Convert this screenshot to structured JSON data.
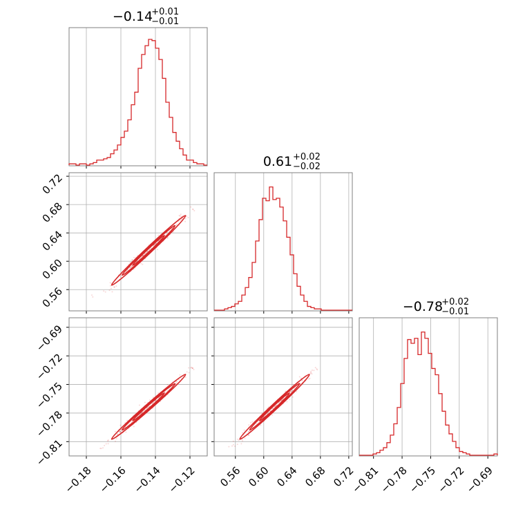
{
  "chart_data": {
    "type": "corner",
    "color": "#d62728",
    "parameters": [
      {
        "name": "",
        "median": -0.14,
        "err_plus": 0.01,
        "err_minus": 0.01,
        "title_main": "−0.14",
        "title_plus": "+0.01",
        "title_minus": "−0.01",
        "range": [
          -0.19,
          -0.11
        ],
        "ticks": [
          -0.18,
          -0.16,
          -0.14,
          -0.12
        ],
        "tick_labels": [
          "−0.18",
          "−0.16",
          "−0.14",
          "−0.12"
        ],
        "hist": [
          0.01,
          0.01,
          0.0,
          0.01,
          0.01,
          0.0,
          0.01,
          0.02,
          0.04,
          0.04,
          0.05,
          0.06,
          0.09,
          0.12,
          0.16,
          0.22,
          0.27,
          0.36,
          0.48,
          0.58,
          0.77,
          0.88,
          0.95,
          1.0,
          0.99,
          0.93,
          0.84,
          0.69,
          0.5,
          0.38,
          0.26,
          0.19,
          0.13,
          0.08,
          0.04,
          0.04,
          0.02,
          0.01,
          0.01,
          0.0
        ]
      },
      {
        "name": "",
        "median": 0.61,
        "err_plus": 0.02,
        "err_minus": 0.02,
        "title_main": "0.61",
        "title_plus": "+0.02",
        "title_minus": "−0.02",
        "range": [
          0.53,
          0.725
        ],
        "ticks": [
          0.56,
          0.6,
          0.64,
          0.68,
          0.72
        ],
        "tick_labels": [
          "0.56",
          "0.60",
          "0.64",
          "0.68",
          "0.72"
        ],
        "hist": [
          0.0,
          0.0,
          0.0,
          0.01,
          0.02,
          0.03,
          0.05,
          0.07,
          0.12,
          0.18,
          0.26,
          0.38,
          0.55,
          0.72,
          0.89,
          0.87,
          0.98,
          0.88,
          0.89,
          0.82,
          0.71,
          0.58,
          0.44,
          0.29,
          0.19,
          0.12,
          0.07,
          0.03,
          0.02,
          0.01,
          0.01,
          0.0,
          0.0,
          0.0,
          0.0,
          0.0,
          0.0,
          0.0,
          0.0,
          0.0
        ]
      },
      {
        "name": "",
        "median": -0.78,
        "err_plus": 0.02,
        "err_minus": 0.01,
        "title_main": "−0.78",
        "title_plus": "+0.02",
        "title_minus": "−0.01",
        "range": [
          -0.825,
          -0.68
        ],
        "ticks": [
          -0.81,
          -0.78,
          -0.75,
          -0.72,
          -0.69
        ],
        "tick_labels": [
          "−0.81",
          "−0.78",
          "−0.75",
          "−0.72",
          "−0.69"
        ],
        "hist": [
          0.0,
          0.0,
          0.0,
          0.0,
          0.01,
          0.02,
          0.04,
          0.06,
          0.1,
          0.16,
          0.25,
          0.38,
          0.57,
          0.77,
          0.92,
          0.89,
          0.93,
          0.8,
          0.98,
          0.93,
          0.81,
          0.69,
          0.64,
          0.49,
          0.35,
          0.24,
          0.17,
          0.11,
          0.06,
          0.03,
          0.02,
          0.01,
          0.0,
          0.0,
          0.0,
          0.0,
          0.0,
          0.0,
          0.0,
          0.01
        ]
      }
    ],
    "correlations": [
      {
        "row": 1,
        "col": 0,
        "x_from": -0.172,
        "x_to": -0.121,
        "y_from": 0.551,
        "y_to": 0.668
      },
      {
        "row": 2,
        "col": 0,
        "x_from": -0.172,
        "x_to": -0.121,
        "y_from": -0.818,
        "y_to": -0.737
      },
      {
        "row": 2,
        "col": 1,
        "x_from": 0.551,
        "x_to": 0.668,
        "y_from": -0.818,
        "y_to": -0.737
      }
    ],
    "grid": true
  }
}
